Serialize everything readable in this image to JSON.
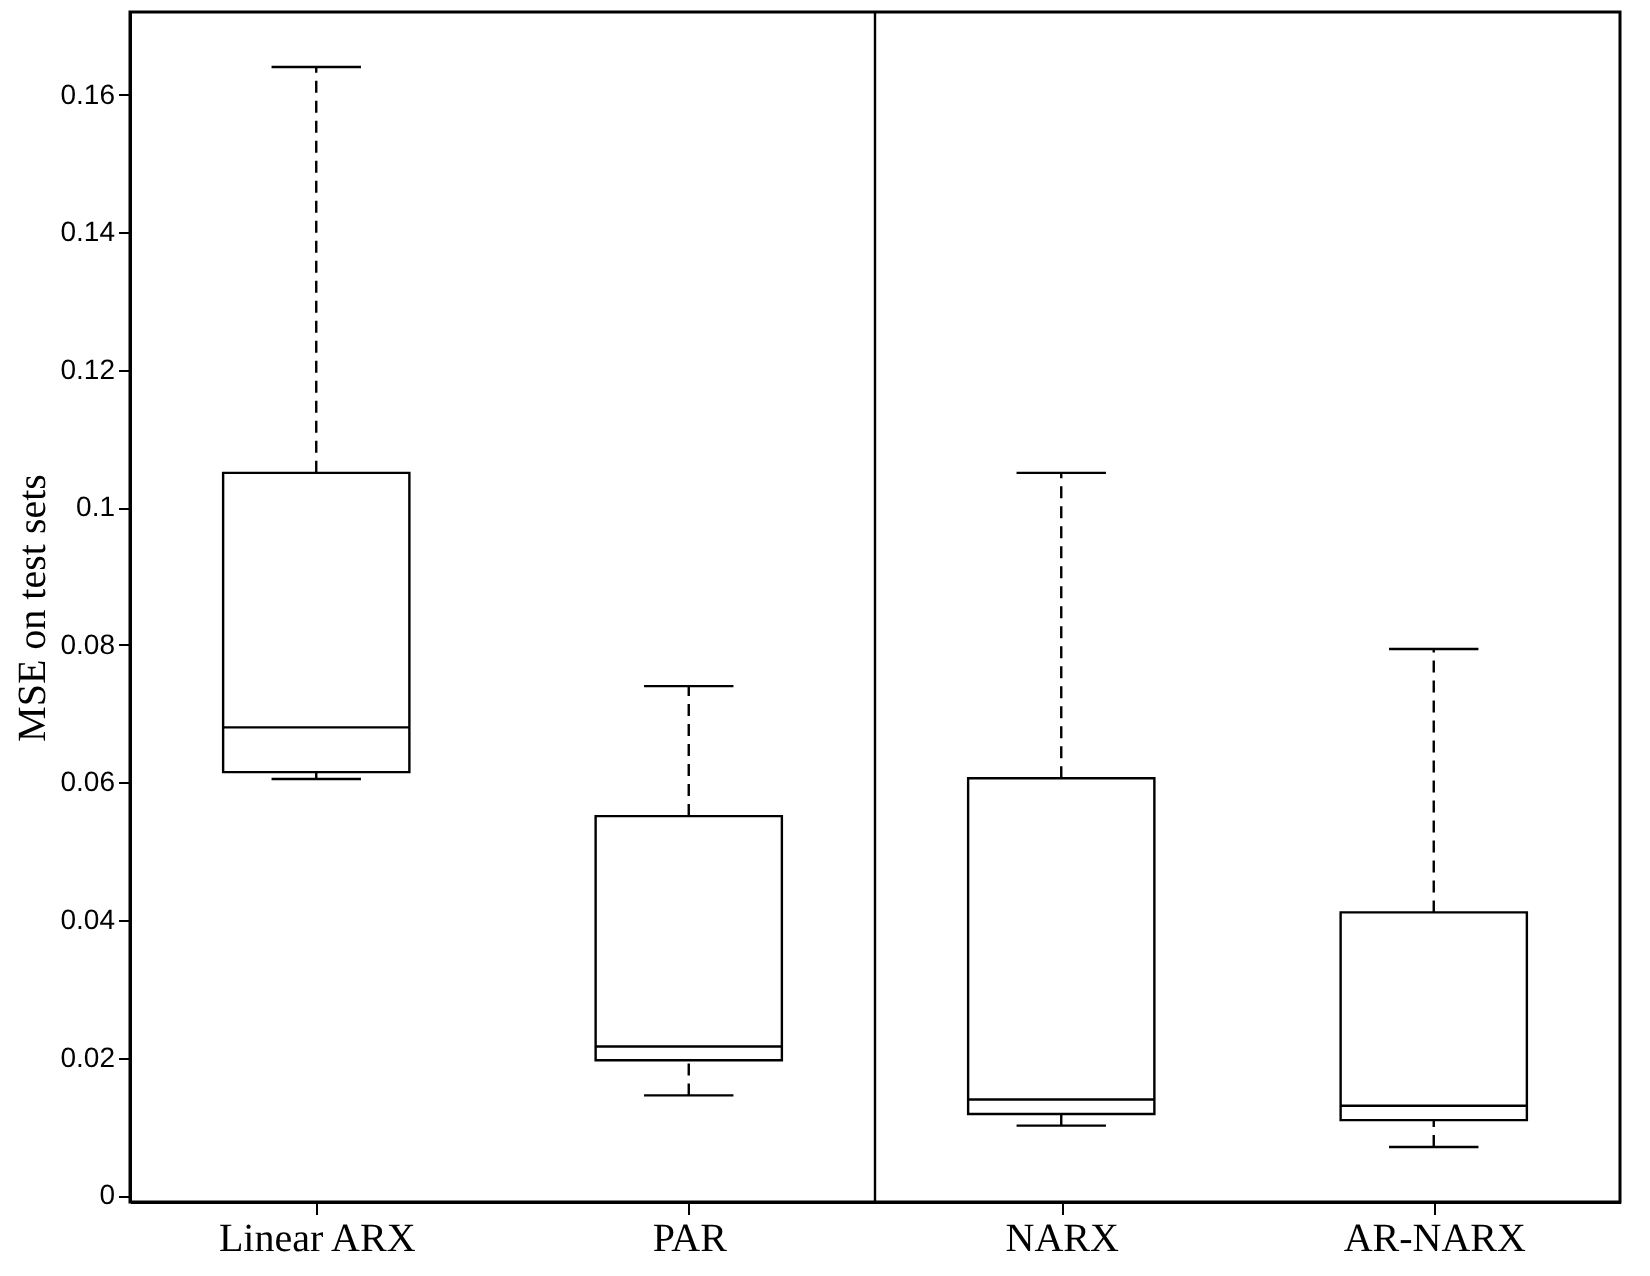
{
  "chart_data": {
    "type": "box",
    "ylabel": "MSE on test sets",
    "categories": [
      "Linear ARX",
      "PAR",
      "NARX",
      "AR-NARX"
    ],
    "boxes": [
      {
        "low": 0.0605,
        "q1": 0.0615,
        "median": 0.068,
        "q3": 0.105,
        "high": 0.164
      },
      {
        "low": 0.0145,
        "q1": 0.0196,
        "median": 0.0216,
        "q3": 0.0551,
        "high": 0.074
      },
      {
        "low": 0.0101,
        "q1": 0.0118,
        "median": 0.0139,
        "q3": 0.0606,
        "high": 0.105
      },
      {
        "low": 0.007,
        "q1": 0.0109,
        "median": 0.013,
        "q3": 0.0411,
        "high": 0.0794
      }
    ],
    "color": "#000000",
    "ylim": [
      -0.001,
      0.172
    ],
    "yticks": [
      0,
      0.02,
      0.04,
      0.06,
      0.08,
      0.1,
      0.12,
      0.14,
      0.16
    ],
    "line_style": "dashed",
    "grid": false
  }
}
